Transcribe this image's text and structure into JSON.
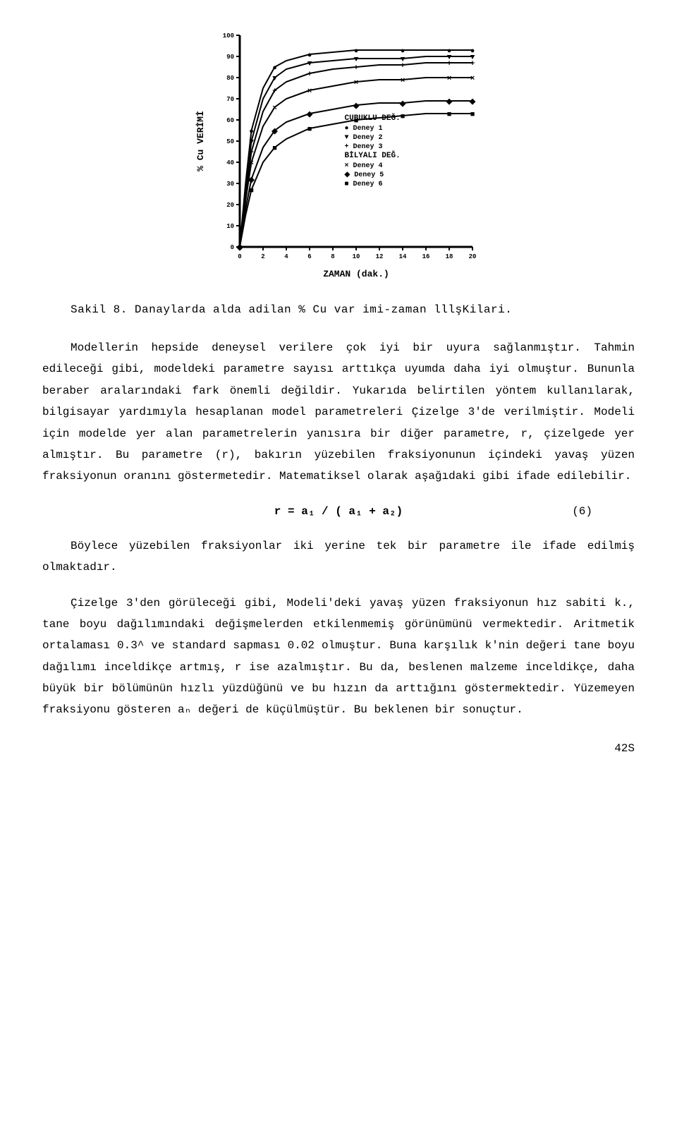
{
  "chart": {
    "type": "line",
    "title": "",
    "ylabel": "% Cu VERİMİ",
    "xlabel": "ZAMAN (dak.)",
    "xlim": [
      0,
      20
    ],
    "ylim": [
      0,
      100
    ],
    "xticks": [
      0,
      2,
      4,
      6,
      8,
      10,
      12,
      14,
      16,
      18,
      20
    ],
    "yticks": [
      0,
      10,
      20,
      30,
      40,
      50,
      60,
      70,
      80,
      90,
      100
    ],
    "xtick_labels": [
      "0",
      "2",
      "4",
      "6",
      "8",
      "10",
      "12",
      "14",
      "16",
      "18",
      "20"
    ],
    "ytick_labels": [
      "0",
      "10",
      "20",
      "30",
      "40",
      "50",
      "60",
      "70",
      "80",
      "90",
      "100"
    ],
    "label_fontsize": 11,
    "tick_fontsize": 9,
    "axis_color": "#000000",
    "background_color": "#ffffff",
    "line_width": 2,
    "curves_color": "#000000",
    "legend_title1": "CUBUKLU DEĞ.",
    "legend_title2": "BİLYALI DEĞ.",
    "legend_font_weight": "bold",
    "series": [
      {
        "name": "Deney 1",
        "marker": "circle-filled",
        "group": 1,
        "points": [
          [
            0,
            0
          ],
          [
            0.5,
            30
          ],
          [
            1,
            55
          ],
          [
            2,
            75
          ],
          [
            3,
            85
          ],
          [
            4,
            88
          ],
          [
            6,
            91
          ],
          [
            8,
            92
          ],
          [
            10,
            93
          ],
          [
            12,
            93
          ],
          [
            14,
            93
          ],
          [
            16,
            93
          ],
          [
            18,
            93
          ],
          [
            20,
            93
          ]
        ]
      },
      {
        "name": "Deney 2",
        "marker": "triangle-down",
        "group": 1,
        "points": [
          [
            0,
            0
          ],
          [
            0.5,
            28
          ],
          [
            1,
            50
          ],
          [
            2,
            70
          ],
          [
            3,
            80
          ],
          [
            4,
            84
          ],
          [
            6,
            87
          ],
          [
            8,
            88
          ],
          [
            10,
            89
          ],
          [
            12,
            89
          ],
          [
            14,
            89
          ],
          [
            16,
            90
          ],
          [
            18,
            90
          ],
          [
            20,
            90
          ]
        ]
      },
      {
        "name": "Deney 3",
        "marker": "plus",
        "group": 1,
        "points": [
          [
            0,
            0
          ],
          [
            0.5,
            25
          ],
          [
            1,
            45
          ],
          [
            2,
            64
          ],
          [
            3,
            74
          ],
          [
            4,
            78
          ],
          [
            6,
            82
          ],
          [
            8,
            84
          ],
          [
            10,
            85
          ],
          [
            12,
            86
          ],
          [
            14,
            86
          ],
          [
            16,
            87
          ],
          [
            18,
            87
          ],
          [
            20,
            87
          ]
        ]
      },
      {
        "name": "Deney 4",
        "marker": "x",
        "group": 2,
        "points": [
          [
            0,
            0
          ],
          [
            0.5,
            22
          ],
          [
            1,
            40
          ],
          [
            2,
            57
          ],
          [
            3,
            66
          ],
          [
            4,
            70
          ],
          [
            6,
            74
          ],
          [
            8,
            76
          ],
          [
            10,
            78
          ],
          [
            12,
            79
          ],
          [
            14,
            79
          ],
          [
            16,
            80
          ],
          [
            18,
            80
          ],
          [
            20,
            80
          ]
        ]
      },
      {
        "name": "Deney 5",
        "marker": "diamond",
        "group": 2,
        "points": [
          [
            0,
            0
          ],
          [
            0.5,
            18
          ],
          [
            1,
            32
          ],
          [
            2,
            47
          ],
          [
            3,
            55
          ],
          [
            4,
            59
          ],
          [
            6,
            63
          ],
          [
            8,
            65
          ],
          [
            10,
            67
          ],
          [
            12,
            68
          ],
          [
            14,
            68
          ],
          [
            16,
            69
          ],
          [
            18,
            69
          ],
          [
            20,
            69
          ]
        ]
      },
      {
        "name": "Deney 6",
        "marker": "square-filled",
        "group": 2,
        "points": [
          [
            0,
            0
          ],
          [
            0.5,
            15
          ],
          [
            1,
            27
          ],
          [
            2,
            40
          ],
          [
            3,
            47
          ],
          [
            4,
            51
          ],
          [
            6,
            56
          ],
          [
            8,
            58
          ],
          [
            10,
            60
          ],
          [
            12,
            61
          ],
          [
            14,
            62
          ],
          [
            16,
            63
          ],
          [
            18,
            63
          ],
          [
            20,
            63
          ]
        ]
      }
    ]
  },
  "caption": {
    "label": "Sakil 8.",
    "text": "Danaylarda alda adilan % Cu var imi-zaman lllşKilari."
  },
  "para1": "Modellerin hepside deneysel verilere çok iyi bir uyura sağlanmıştır. Tahmin edileceği gibi, modeldeki parametre sayısı arttıkça uyumda daha iyi olmuştur. Bununla beraber aralarındaki fark önemli değildir. Yukarıda belirtilen yöntem kullanılarak, bilgisayar yardımıyla hesaplanan model parametreleri Çizelge 3'de verilmiştir. Modeli için modelde yer alan parametrelerin yanısıra bir diğer parametre, r, çizelgede yer almıştır. Bu parametre (r), bakırın yüzebilen fraksiyonunun içindeki yavaş yüzen fraksiyonun oranını göstermetedir. Matematiksel olarak aşağıdaki gibi ifade edilebilir.",
  "equation": {
    "text": "r = a₁ / ( a₁ + a₂)",
    "num": "(6)"
  },
  "para2": "Böylece yüzebilen fraksiyonlar iki yerine tek bir parametre ile ifade edilmiş olmaktadır.",
  "para3": "Çizelge 3'den görüleceği gibi, Modeli'deki yavaş yüzen fraksiyonun hız sabiti k., tane boyu dağılımındaki değişmelerden etkilenmemiş görünümünü vermektedir. Aritmetik ortalaması 0.3^ ve standard sapması 0.02 olmuştur. Buna karşılık k'nin değeri tane boyu dağılımı inceldikçe artmış, r ise azalmıştır. Bu da, beslenen malzeme inceldikçe, daha büyük bir bölümünün hızlı yüzdüğünü ve bu hızın da arttığını göstermektedir. Yüzemeyen fraksiyonu gösteren aₙ değeri de küçülmüştür. Bu beklenen bir sonuçtur.",
  "page_number": "42S"
}
